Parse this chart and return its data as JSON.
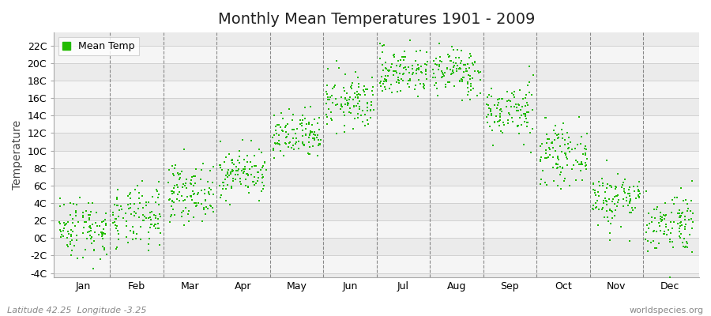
{
  "title": "Monthly Mean Temperatures 1901 - 2009",
  "ylabel": "Temperature",
  "dot_color": "#22bb00",
  "dot_size": 3,
  "background_color": "#ffffff",
  "plot_bg_color": "#ebebeb",
  "alt_band_color": "#f5f5f5",
  "ytick_labels": [
    "-4C",
    "-2C",
    "0C",
    "2C",
    "4C",
    "6C",
    "8C",
    "10C",
    "12C",
    "14C",
    "16C",
    "18C",
    "20C",
    "22C"
  ],
  "ytick_values": [
    -4,
    -2,
    0,
    2,
    4,
    6,
    8,
    10,
    12,
    14,
    16,
    18,
    20,
    22
  ],
  "ylim": [
    -4.5,
    23.5
  ],
  "month_names": [
    "Jan",
    "Feb",
    "Mar",
    "Apr",
    "May",
    "Jun",
    "Jul",
    "Aug",
    "Sep",
    "Oct",
    "Nov",
    "Dec"
  ],
  "monthly_means": [
    1.2,
    2.2,
    5.2,
    7.5,
    11.5,
    15.5,
    19.0,
    19.0,
    14.5,
    9.5,
    4.5,
    1.8
  ],
  "monthly_stds": [
    1.8,
    1.8,
    1.6,
    1.4,
    1.4,
    1.6,
    1.4,
    1.4,
    1.6,
    1.6,
    1.6,
    1.8
  ],
  "n_years": 109,
  "legend_label": "Mean Temp",
  "footer_left": "Latitude 42.25  Longitude -3.25",
  "footer_right": "worldspecies.org",
  "grid_color": "#cccccc",
  "dashed_color": "#888888",
  "title_fontsize": 14,
  "axis_fontsize": 9,
  "footer_fontsize": 8
}
